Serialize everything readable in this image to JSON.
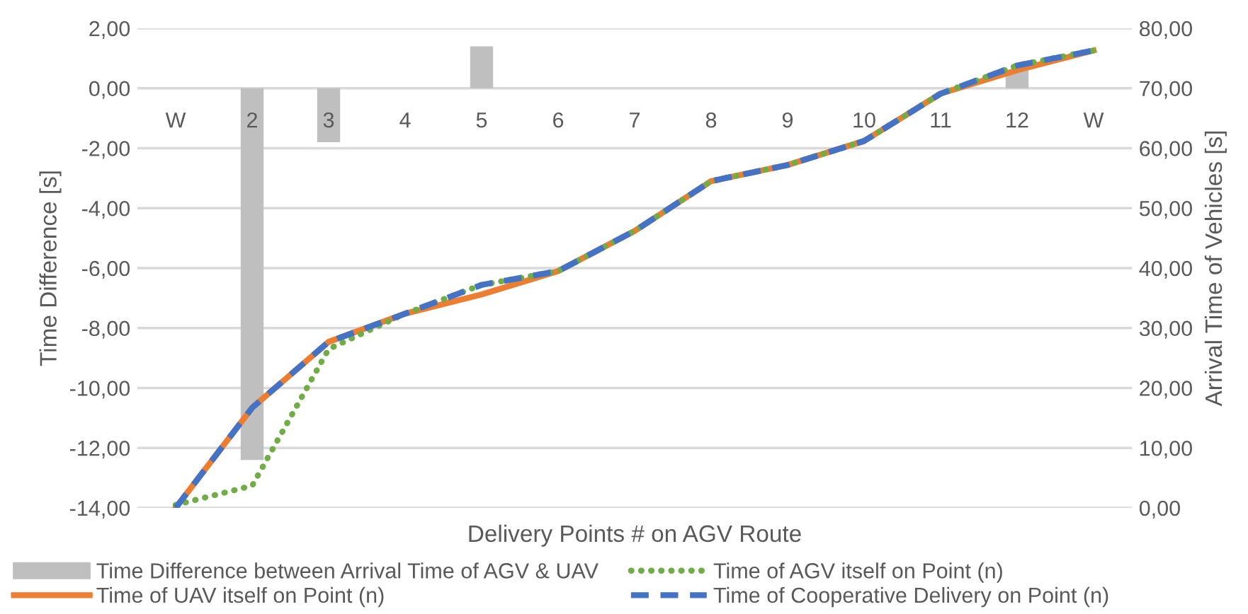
{
  "chart_data": {
    "type": "bar",
    "xlabel": "Delivery Points # on AGV Route",
    "ylabel": "Time Difference [s]",
    "y2label": "Arrival Time of Vehicles [s]",
    "categories": [
      "W",
      "2",
      "3",
      "4",
      "5",
      "6",
      "7",
      "8",
      "9",
      "10",
      "11",
      "12",
      "W"
    ],
    "series": [
      {
        "name": "Time Difference between Arrival Time of AGV & UAV",
        "color": "#bfbfbf",
        "values": [
          0,
          -12.4,
          -1.8,
          0,
          1.4,
          0,
          0,
          0,
          0,
          0,
          0,
          0.6,
          0
        ]
      },
      {
        "name": "Time of AGV itself on Point (n)",
        "type": "line",
        "axis": "y2",
        "color": "#70ad47",
        "line_style": "dotted",
        "values": [
          0.5,
          3.7,
          26.5,
          32.4,
          37.2,
          39.5,
          46.2,
          54.5,
          57.2,
          61.2,
          69.1,
          73.8,
          76.3
        ]
      },
      {
        "name": "Time of UAV itself on Point (n)",
        "type": "line",
        "axis": "y2",
        "color": "#ed7d31",
        "line_style": "solid",
        "values": [
          0,
          16.7,
          27.7,
          32.4,
          35.6,
          39.5,
          46.2,
          54.5,
          57.2,
          61.2,
          69.1,
          73.0,
          76.3
        ]
      },
      {
        "name": "Time of Cooperative Delivery on Point (n)",
        "type": "line",
        "axis": "y2",
        "color": "#4472c4",
        "line_style": "dashed",
        "values": [
          0,
          16.7,
          27.7,
          32.4,
          37.2,
          39.5,
          46.2,
          54.5,
          57.2,
          61.2,
          69.1,
          73.8,
          76.3
        ]
      }
    ],
    "ylim": [
      -14,
      2
    ],
    "yticks": [
      {
        "value": -14,
        "label": "-14,00"
      },
      {
        "value": -12,
        "label": "-12,00"
      },
      {
        "value": -10,
        "label": "-10,00"
      },
      {
        "value": -8,
        "label": "-8,00"
      },
      {
        "value": -6,
        "label": "-6,00"
      },
      {
        "value": -4,
        "label": "-4,00"
      },
      {
        "value": -2,
        "label": "-2,00"
      },
      {
        "value": 0,
        "label": "0,00"
      },
      {
        "value": 2,
        "label": "2,00"
      }
    ],
    "y2lim": [
      0,
      80
    ],
    "y2ticks": [
      {
        "value": 0,
        "label": "0,00"
      },
      {
        "value": 10,
        "label": "10,00"
      },
      {
        "value": 20,
        "label": "20,00"
      },
      {
        "value": 30,
        "label": "30,00"
      },
      {
        "value": 40,
        "label": "40,00"
      },
      {
        "value": 50,
        "label": "50,00"
      },
      {
        "value": 60,
        "label": "60,00"
      },
      {
        "value": 70,
        "label": "70,00"
      },
      {
        "value": 80,
        "label": "80,00"
      }
    ],
    "grid": "y",
    "legend": "bottom",
    "marker": "none"
  }
}
